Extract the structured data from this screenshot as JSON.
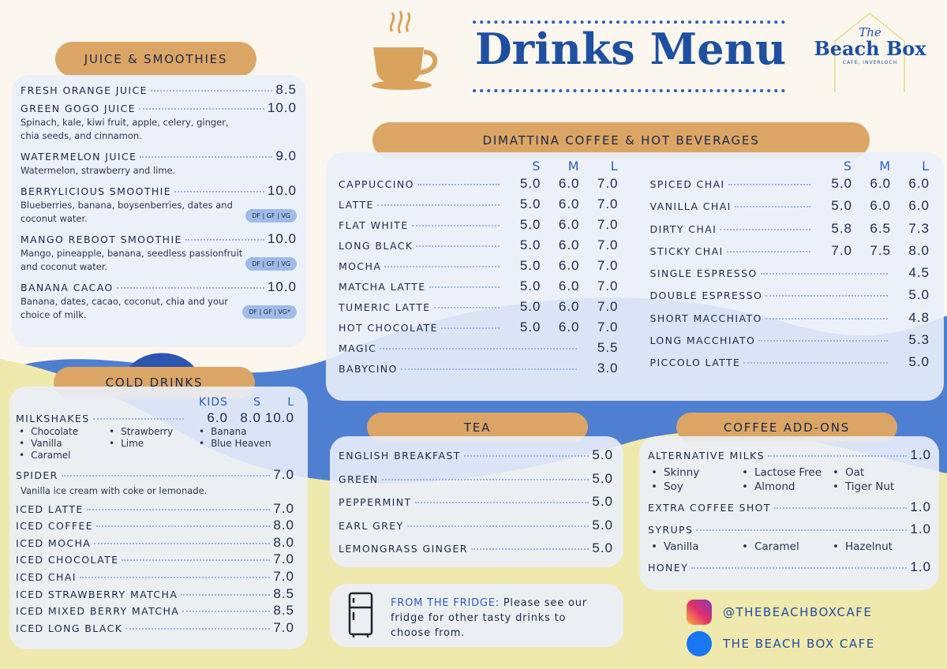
{
  "header": {
    "title": "Drinks Menu",
    "logo": {
      "the": "The",
      "name": "Beach Box",
      "tagline": "CAFE, INVERLOCH"
    }
  },
  "juice": {
    "title": "JUICE & SMOOTHIES",
    "items": [
      {
        "name": "FRESH ORANGE JUICE",
        "price": "8.5"
      },
      {
        "name": "GREEN GOGO JUICE",
        "price": "10.0",
        "desc": "Spinach, kale, kiwi fruit, apple, celery, ginger, chia seeds, and cinnamon."
      },
      {
        "name": "WATERMELON JUICE",
        "price": "9.0",
        "desc": "Watermelon, strawberry and lime."
      },
      {
        "name": "BERRYLICIOUS SMOOTHIE",
        "price": "10.0",
        "desc": "Blueberries, banana, boysenberries, dates and coconut water.",
        "tag": "DF | GF | VG"
      },
      {
        "name": "MANGO REBOOT SMOOTHIE",
        "price": "10.0",
        "desc": "Mango, pineapple, banana, seedless passionfruit and coconut water.",
        "tag": "DF | GF | VG"
      },
      {
        "name": "BANANA CACAO",
        "price": "10.0",
        "desc": "Banana, dates, cacao, coconut, chia and your choice of milk.",
        "tag": "DF | GF | VG*"
      }
    ]
  },
  "coffee": {
    "title": "DIMATTINA COFFEE & HOT BEVERAGES",
    "sizes": [
      "S",
      "M",
      "L"
    ],
    "left": [
      {
        "name": "CAPPUCCINO",
        "prices": [
          "5.0",
          "6.0",
          "7.0"
        ]
      },
      {
        "name": "LATTE",
        "prices": [
          "5.0",
          "6.0",
          "7.0"
        ]
      },
      {
        "name": "FLAT WHITE",
        "prices": [
          "5.0",
          "6.0",
          "7.0"
        ]
      },
      {
        "name": "LONG BLACK",
        "prices": [
          "5.0",
          "6.0",
          "7.0"
        ]
      },
      {
        "name": "MOCHA",
        "prices": [
          "5.0",
          "6.0",
          "7.0"
        ]
      },
      {
        "name": "MATCHA LATTE",
        "prices": [
          "5.0",
          "6.0",
          "7.0"
        ]
      },
      {
        "name": "TUMERIC LATTE",
        "prices": [
          "5.0",
          "6.0",
          "7.0"
        ]
      },
      {
        "name": "HOT CHOCOLATE",
        "prices": [
          "5.0",
          "6.0",
          "7.0"
        ]
      },
      {
        "name": "MAGIC",
        "prices": [
          "5.5"
        ]
      },
      {
        "name": "BABYCINO",
        "prices": [
          "3.0"
        ]
      }
    ],
    "right": [
      {
        "name": "SPICED CHAI",
        "prices": [
          "5.0",
          "6.0",
          "6.0"
        ]
      },
      {
        "name": "VANILLA CHAI",
        "prices": [
          "5.0",
          "6.0",
          "6.0"
        ]
      },
      {
        "name": "DIRTY CHAI",
        "prices": [
          "5.8",
          "6.5",
          "7.3"
        ]
      },
      {
        "name": "STICKY CHAI",
        "prices": [
          "7.0",
          "7.5",
          "8.0"
        ]
      },
      {
        "name": "SINGLE ESPRESSO",
        "prices": [
          "4.5"
        ]
      },
      {
        "name": "DOUBLE ESPRESSO",
        "prices": [
          "5.0"
        ]
      },
      {
        "name": "SHORT MACCHIATO",
        "prices": [
          "4.8"
        ]
      },
      {
        "name": "LONG MACCHIATO",
        "prices": [
          "5.3"
        ]
      },
      {
        "name": "PICCOLO LATTE",
        "prices": [
          "5.0"
        ]
      }
    ]
  },
  "cold": {
    "title": "COLD DRINKS",
    "sizes": [
      "KIDS",
      "S",
      "L"
    ],
    "milkshakes": {
      "name": "MILKSHAKES",
      "prices": [
        "6.0",
        "8.0",
        "10.0"
      ],
      "flavours": [
        "Chocolate",
        "Strawberry",
        "Banana",
        "Vanilla",
        "Lime",
        "Blue Heaven",
        "Caramel"
      ]
    },
    "items": [
      {
        "name": "SPIDER",
        "price": "7.0",
        "desc": "Vanilla ice cream with coke or lemonade."
      },
      {
        "name": "ICED LATTE",
        "price": "7.0"
      },
      {
        "name": "ICED COFFEE",
        "price": "8.0"
      },
      {
        "name": "ICED MOCHA",
        "price": "8.0"
      },
      {
        "name": "ICED CHOCOLATE",
        "price": "7.0"
      },
      {
        "name": "ICED CHAI",
        "price": "7.0"
      },
      {
        "name": "ICED STRAWBERRY MATCHA",
        "price": "8.5"
      },
      {
        "name": "ICED MIXED BERRY MATCHA",
        "price": "8.5"
      },
      {
        "name": "ICED LONG BLACK",
        "price": "7.0"
      }
    ]
  },
  "tea": {
    "title": "TEA",
    "items": [
      {
        "name": "ENGLISH BREAKFAST",
        "price": "5.0"
      },
      {
        "name": "GREEN",
        "price": "5.0"
      },
      {
        "name": "PEPPERMINT",
        "price": "5.0"
      },
      {
        "name": "EARL GREY",
        "price": "5.0"
      },
      {
        "name": "LEMONGRASS GINGER",
        "price": "5.0"
      }
    ]
  },
  "addons": {
    "title": "COFFEE ADD-ONS",
    "items": [
      {
        "name": "ALTERNATIVE MILKS",
        "price": "1.0",
        "options": [
          "Skinny",
          "Lactose Free",
          "Oat",
          "Soy",
          "Almond",
          "Tiger Nut"
        ]
      },
      {
        "name": "EXTRA COFFEE SHOT",
        "price": "1.0"
      },
      {
        "name": "SYRUPS",
        "price": "1.0",
        "options": [
          "Vanilla",
          "Caramel",
          "Hazelnut"
        ]
      },
      {
        "name": "HONEY",
        "price": "1.0"
      }
    ]
  },
  "fridge": {
    "label": "FROM THE FRIDGE:",
    "text": "Please see our fridge for other tasty drinks to choose from."
  },
  "social": {
    "instagram": "@THEBEACHBOXCAFE",
    "facebook": "THE BEACH BOX CAFE"
  }
}
